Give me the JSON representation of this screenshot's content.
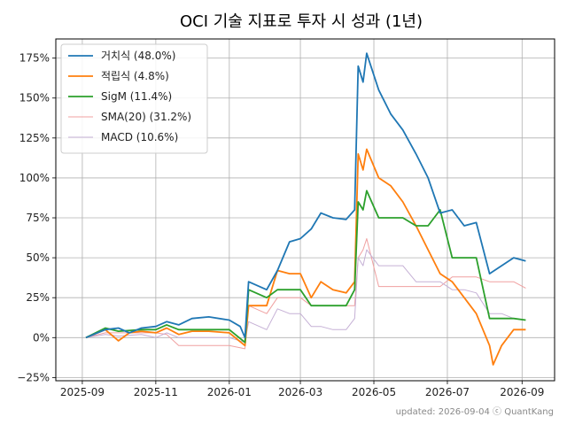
{
  "chart_data": {
    "type": "line",
    "title": "OCI 기술 지표로 투자 시 성과 (1년)",
    "xlabel": "",
    "ylabel": "",
    "x_ticks": [
      "2025-09",
      "2025-11",
      "2026-01",
      "2026-03",
      "2026-05",
      "2026-07",
      "2026-09"
    ],
    "y_ticks": [
      "−25%",
      "0%",
      "25%",
      "50%",
      "75%",
      "100%",
      "125%",
      "150%",
      "175%"
    ],
    "xlim": [
      "2025-08-10",
      "2026-09-28"
    ],
    "ylim": [
      -27,
      187
    ],
    "grid": true,
    "legend_position": "top-left",
    "footer": "updated: 2026-09-04 ⓒ QuantKang",
    "series": [
      {
        "name": "거치식 (48.0%)",
        "color": "#1f77b4",
        "points": [
          [
            "2025-09-04",
            0
          ],
          [
            "2025-09-20",
            5
          ],
          [
            "2025-10-01",
            6
          ],
          [
            "2025-10-10",
            3
          ],
          [
            "2025-10-20",
            6
          ],
          [
            "2025-11-01",
            7
          ],
          [
            "2025-11-10",
            10
          ],
          [
            "2025-11-20",
            8
          ],
          [
            "2025-12-01",
            12
          ],
          [
            "2025-12-15",
            13
          ],
          [
            "2026-01-01",
            11
          ],
          [
            "2026-01-10",
            7
          ],
          [
            "2026-01-14",
            0
          ],
          [
            "2026-01-17",
            35
          ],
          [
            "2026-02-01",
            30
          ],
          [
            "2026-02-10",
            42
          ],
          [
            "2026-02-20",
            60
          ],
          [
            "2026-03-01",
            62
          ],
          [
            "2026-03-10",
            68
          ],
          [
            "2026-03-18",
            78
          ],
          [
            "2026-03-28",
            75
          ],
          [
            "2026-04-08",
            74
          ],
          [
            "2026-04-15",
            80
          ],
          [
            "2026-04-18",
            170
          ],
          [
            "2026-04-22",
            160
          ],
          [
            "2026-04-25",
            178
          ],
          [
            "2026-05-05",
            155
          ],
          [
            "2026-05-15",
            140
          ],
          [
            "2026-05-25",
            130
          ],
          [
            "2026-06-05",
            115
          ],
          [
            "2026-06-15",
            100
          ],
          [
            "2026-06-25",
            78
          ],
          [
            "2026-07-05",
            80
          ],
          [
            "2026-07-15",
            70
          ],
          [
            "2026-07-25",
            72
          ],
          [
            "2026-08-05",
            40
          ],
          [
            "2026-08-15",
            45
          ],
          [
            "2026-08-25",
            50
          ],
          [
            "2026-09-04",
            48
          ]
        ]
      },
      {
        "name": "적립식 (4.8%)",
        "color": "#ff7f0e",
        "points": [
          [
            "2025-09-04",
            0
          ],
          [
            "2025-09-20",
            5
          ],
          [
            "2025-10-01",
            -2
          ],
          [
            "2025-10-10",
            3
          ],
          [
            "2025-10-20",
            4
          ],
          [
            "2025-11-01",
            3
          ],
          [
            "2025-11-10",
            6
          ],
          [
            "2025-11-20",
            2
          ],
          [
            "2025-12-01",
            4
          ],
          [
            "2025-12-15",
            4
          ],
          [
            "2026-01-01",
            3
          ],
          [
            "2026-01-14",
            -5
          ],
          [
            "2026-01-17",
            20
          ],
          [
            "2026-02-01",
            20
          ],
          [
            "2026-02-10",
            42
          ],
          [
            "2026-02-20",
            40
          ],
          [
            "2026-03-01",
            40
          ],
          [
            "2026-03-10",
            25
          ],
          [
            "2026-03-18",
            35
          ],
          [
            "2026-03-28",
            30
          ],
          [
            "2026-04-08",
            28
          ],
          [
            "2026-04-15",
            35
          ],
          [
            "2026-04-18",
            115
          ],
          [
            "2026-04-22",
            105
          ],
          [
            "2026-04-25",
            118
          ],
          [
            "2026-05-05",
            100
          ],
          [
            "2026-05-15",
            95
          ],
          [
            "2026-05-25",
            85
          ],
          [
            "2026-06-05",
            70
          ],
          [
            "2026-06-15",
            55
          ],
          [
            "2026-06-25",
            40
          ],
          [
            "2026-07-05",
            35
          ],
          [
            "2026-07-15",
            25
          ],
          [
            "2026-07-25",
            15
          ],
          [
            "2026-08-05",
            -5
          ],
          [
            "2026-08-08",
            -17
          ],
          [
            "2026-08-15",
            -5
          ],
          [
            "2026-08-25",
            5
          ],
          [
            "2026-09-04",
            5
          ]
        ]
      },
      {
        "name": "SigM (11.4%)",
        "color": "#2ca02c",
        "points": [
          [
            "2025-09-04",
            0
          ],
          [
            "2025-09-20",
            6
          ],
          [
            "2025-10-01",
            4
          ],
          [
            "2025-10-20",
            5
          ],
          [
            "2025-11-01",
            5
          ],
          [
            "2025-11-10",
            8
          ],
          [
            "2025-11-20",
            5
          ],
          [
            "2025-12-01",
            5
          ],
          [
            "2025-12-15",
            5
          ],
          [
            "2026-01-01",
            5
          ],
          [
            "2026-01-14",
            -3
          ],
          [
            "2026-01-17",
            30
          ],
          [
            "2026-02-01",
            25
          ],
          [
            "2026-02-10",
            30
          ],
          [
            "2026-02-20",
            30
          ],
          [
            "2026-03-01",
            30
          ],
          [
            "2026-03-10",
            20
          ],
          [
            "2026-03-18",
            20
          ],
          [
            "2026-03-28",
            20
          ],
          [
            "2026-04-08",
            20
          ],
          [
            "2026-04-15",
            30
          ],
          [
            "2026-04-18",
            85
          ],
          [
            "2026-04-22",
            80
          ],
          [
            "2026-04-25",
            92
          ],
          [
            "2026-05-05",
            75
          ],
          [
            "2026-05-15",
            75
          ],
          [
            "2026-05-25",
            75
          ],
          [
            "2026-06-05",
            70
          ],
          [
            "2026-06-15",
            70
          ],
          [
            "2026-06-25",
            80
          ],
          [
            "2026-07-05",
            50
          ],
          [
            "2026-07-15",
            50
          ],
          [
            "2026-07-25",
            50
          ],
          [
            "2026-08-05",
            12
          ],
          [
            "2026-08-15",
            12
          ],
          [
            "2026-08-25",
            12
          ],
          [
            "2026-09-04",
            11
          ]
        ]
      },
      {
        "name": "SMA(20) (31.2%)",
        "color": "#f0a0a0",
        "points": [
          [
            "2025-09-04",
            0
          ],
          [
            "2025-09-20",
            3
          ],
          [
            "2025-10-01",
            3
          ],
          [
            "2025-10-20",
            3
          ],
          [
            "2025-11-01",
            3
          ],
          [
            "2025-11-10",
            2
          ],
          [
            "2025-11-20",
            -5
          ],
          [
            "2025-12-01",
            -5
          ],
          [
            "2025-12-15",
            -5
          ],
          [
            "2026-01-01",
            -5
          ],
          [
            "2026-01-14",
            -7
          ],
          [
            "2026-01-17",
            20
          ],
          [
            "2026-02-01",
            15
          ],
          [
            "2026-02-10",
            25
          ],
          [
            "2026-02-20",
            25
          ],
          [
            "2026-03-01",
            25
          ],
          [
            "2026-03-10",
            20
          ],
          [
            "2026-03-18",
            20
          ],
          [
            "2026-03-28",
            20
          ],
          [
            "2026-04-08",
            20
          ],
          [
            "2026-04-15",
            20
          ],
          [
            "2026-04-18",
            50
          ],
          [
            "2026-04-22",
            55
          ],
          [
            "2026-04-25",
            62
          ],
          [
            "2026-05-05",
            32
          ],
          [
            "2026-05-15",
            32
          ],
          [
            "2026-05-25",
            32
          ],
          [
            "2026-06-05",
            32
          ],
          [
            "2026-06-15",
            32
          ],
          [
            "2026-06-25",
            32
          ],
          [
            "2026-07-05",
            38
          ],
          [
            "2026-07-15",
            38
          ],
          [
            "2026-07-25",
            38
          ],
          [
            "2026-08-05",
            35
          ],
          [
            "2026-08-15",
            35
          ],
          [
            "2026-08-25",
            35
          ],
          [
            "2026-09-04",
            31
          ]
        ]
      },
      {
        "name": "MACD (10.6%)",
        "color": "#c5b0d5",
        "points": [
          [
            "2025-09-04",
            0
          ],
          [
            "2025-09-20",
            2
          ],
          [
            "2025-10-01",
            1
          ],
          [
            "2025-10-20",
            2
          ],
          [
            "2025-11-01",
            0
          ],
          [
            "2025-11-10",
            3
          ],
          [
            "2025-11-20",
            0
          ],
          [
            "2025-12-01",
            0
          ],
          [
            "2025-12-15",
            0
          ],
          [
            "2026-01-01",
            0
          ],
          [
            "2026-01-14",
            -3
          ],
          [
            "2026-01-17",
            10
          ],
          [
            "2026-02-01",
            5
          ],
          [
            "2026-02-10",
            18
          ],
          [
            "2026-02-20",
            15
          ],
          [
            "2026-03-01",
            15
          ],
          [
            "2026-03-10",
            7
          ],
          [
            "2026-03-18",
            7
          ],
          [
            "2026-03-28",
            5
          ],
          [
            "2026-04-08",
            5
          ],
          [
            "2026-04-15",
            12
          ],
          [
            "2026-04-18",
            50
          ],
          [
            "2026-04-22",
            45
          ],
          [
            "2026-04-25",
            55
          ],
          [
            "2026-05-05",
            45
          ],
          [
            "2026-05-15",
            45
          ],
          [
            "2026-05-25",
            45
          ],
          [
            "2026-06-05",
            35
          ],
          [
            "2026-06-15",
            35
          ],
          [
            "2026-06-25",
            35
          ],
          [
            "2026-07-05",
            30
          ],
          [
            "2026-07-15",
            30
          ],
          [
            "2026-07-25",
            28
          ],
          [
            "2026-08-05",
            15
          ],
          [
            "2026-08-15",
            15
          ],
          [
            "2026-08-25",
            12
          ],
          [
            "2026-09-04",
            11
          ]
        ]
      }
    ]
  }
}
